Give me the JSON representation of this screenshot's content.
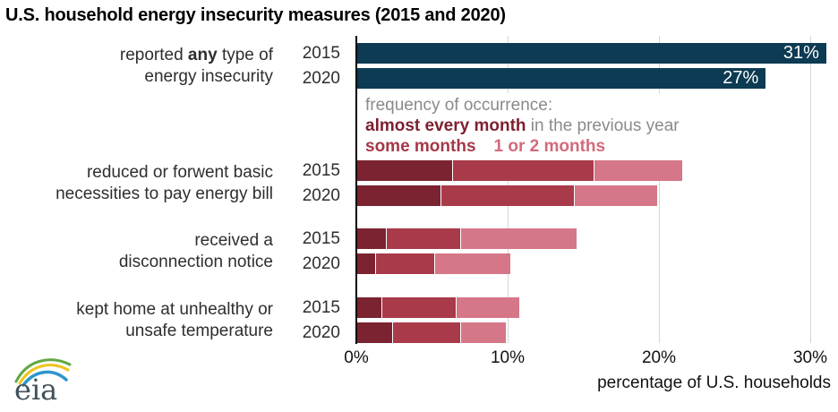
{
  "colors": {
    "navy": "#0d3b53",
    "dark_red": "#7b2331",
    "mid_red": "#a83a49",
    "light_red": "#d57788",
    "legend_dark": "#7e1f2f",
    "legend_mid": "#a63848",
    "legend_light": "#d26a7c",
    "gridline": "#d6d6d6",
    "axis": "#000000",
    "text_gray": "#8a8a8a",
    "logo_green": "#61a843",
    "logo_yellow": "#f0c31b",
    "logo_blue": "#2d95cc",
    "logo_text": "#41525c"
  },
  "logo_text": "eia",
  "chart_data": {
    "type": "bar",
    "orientation": "horizontal",
    "stacked": true,
    "title": "U.S. household energy insecurity measures (2015 and 2020)",
    "xlabel": "percentage of U.S. households",
    "x_ticks": [
      "0%",
      "10%",
      "20%",
      "30%"
    ],
    "x_tick_values": [
      0,
      10,
      20,
      30
    ],
    "xlim": [
      0,
      32
    ],
    "grid": "vertical",
    "legend": {
      "intro": "frequency of occurrence:",
      "entries": [
        {
          "label": "almost every month",
          "suffix": " in the previous year",
          "color_key": "legend_dark"
        },
        {
          "label": "some months",
          "color_key": "legend_mid"
        },
        {
          "label": "1 or 2 months",
          "color_key": "legend_light"
        }
      ]
    },
    "segment_series_names": [
      "almost every month",
      "some months",
      "1 or 2 months"
    ],
    "groups": [
      {
        "label_lines": [
          [
            {
              "t": "reported "
            },
            {
              "t": "any",
              "b": true
            },
            {
              "t": " type of"
            }
          ],
          [
            {
              "t": "energy insecurity"
            }
          ]
        ],
        "style": "solid",
        "bars": [
          {
            "year": "2015",
            "value": 31,
            "value_label": "31%"
          },
          {
            "year": "2020",
            "value": 27,
            "value_label": "27%"
          }
        ]
      },
      {
        "label_lines": [
          [
            {
              "t": "reduced or forwent basic"
            }
          ],
          [
            {
              "t": "necessities to pay energy bill"
            }
          ]
        ],
        "style": "stacked",
        "bars": [
          {
            "year": "2015",
            "segments": [
              6.3,
              9.3,
              5.9
            ],
            "total": 21.5
          },
          {
            "year": "2020",
            "segments": [
              5.5,
              8.8,
              5.5
            ],
            "total": 19.8
          }
        ]
      },
      {
        "label_lines": [
          [
            {
              "t": "received a"
            }
          ],
          [
            {
              "t": "disconnection notice"
            }
          ]
        ],
        "style": "stacked",
        "bars": [
          {
            "year": "2015",
            "segments": [
              1.9,
              4.9,
              7.7
            ],
            "total": 14.5
          },
          {
            "year": "2020",
            "segments": [
              1.2,
              3.9,
              5.0
            ],
            "total": 10.1
          }
        ]
      },
      {
        "label_lines": [
          [
            {
              "t": "kept home at unhealthy or"
            }
          ],
          [
            {
              "t": "unsafe temperature"
            }
          ]
        ],
        "style": "stacked",
        "bars": [
          {
            "year": "2015",
            "segments": [
              1.6,
              4.9,
              4.2
            ],
            "total": 10.7
          },
          {
            "year": "2020",
            "segments": [
              2.3,
              4.5,
              3.0
            ],
            "total": 9.8
          }
        ]
      }
    ]
  }
}
